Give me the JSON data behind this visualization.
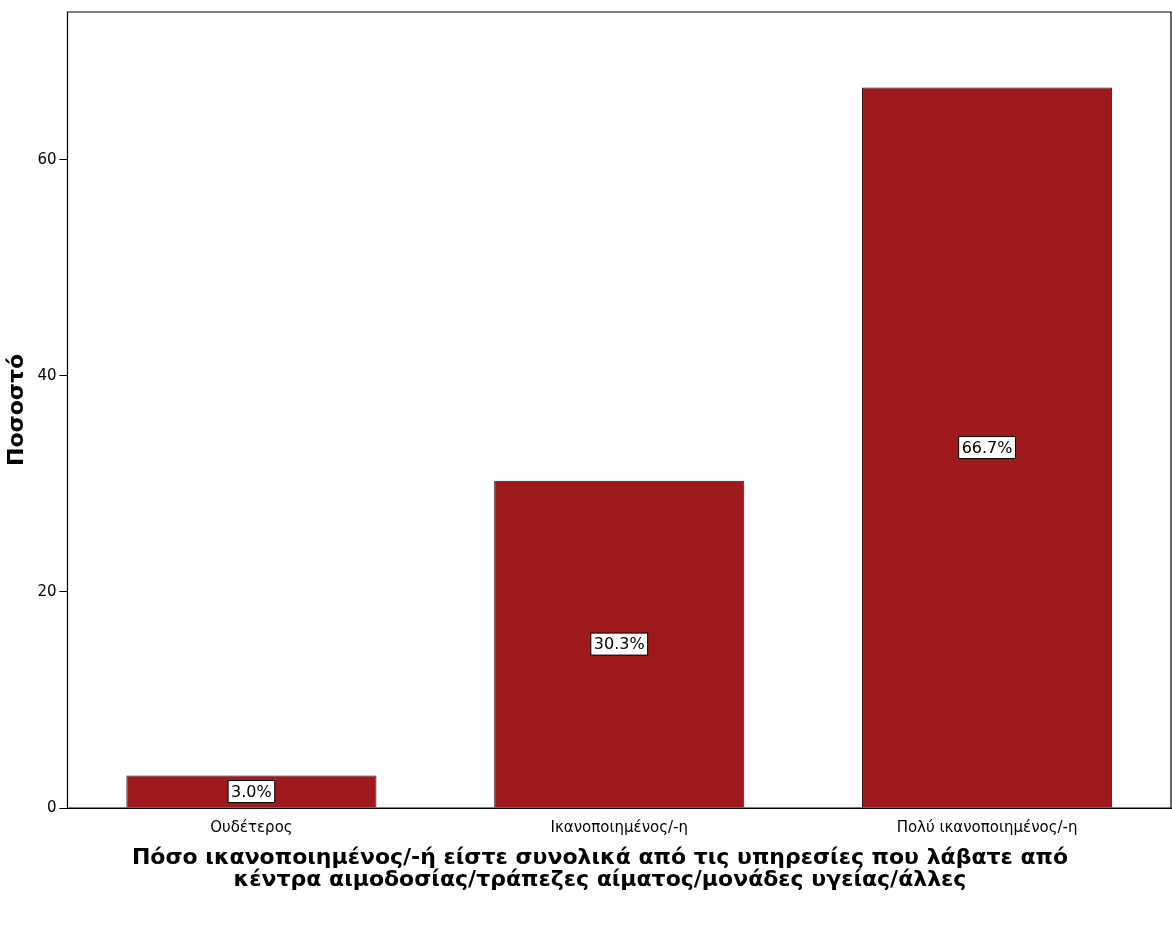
{
  "chart_data": {
    "type": "bar",
    "xlabel": "Πόσο ικανοποιημένος/-ή είστε συνολικά από τις υπηρεσίες που λάβατε από κέντρα αιμοδοσίας/τράπεζες αίματος/μονάδες υγείας/άλλες",
    "ylabel": "Ποσοστό",
    "categories": [
      "Ουδέτερος",
      "Ικανοποιημένος/-η",
      "Πολύ ικανοποιημένος/-η"
    ],
    "values": [
      3.0,
      30.3,
      66.7
    ],
    "value_labels": [
      "3.0%",
      "30.3%",
      "66.7%"
    ],
    "color": "#9e1a1d",
    "ylim": [
      0,
      73.7
    ],
    "yticks": [
      0,
      20,
      40,
      60
    ],
    "grid": false,
    "legend": false
  }
}
